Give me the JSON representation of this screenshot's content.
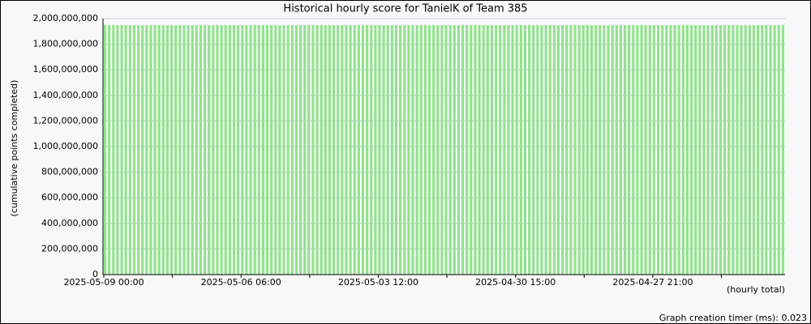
{
  "chart_data": {
    "type": "bar",
    "title": "Historical hourly score for TanielK of Team 385",
    "y_label": "(cumulative points completed)",
    "x_label": "(hourly total)",
    "footer": "Graph creation timer (ms): 0.023",
    "color": "#90e38c",
    "grid": true,
    "ylim": [
      0,
      2000000000
    ],
    "yticks": [
      0,
      {
        "value": 200000000,
        "label": "200,000,000"
      },
      {
        "value": 400000000,
        "label": "400,000,000"
      },
      {
        "value": 600000000,
        "label": "600,000,000"
      },
      {
        "value": 800000000,
        "label": "800,000,000"
      },
      {
        "value": 1000000000,
        "label": "1,000,000,000"
      },
      {
        "value": 1200000000,
        "label": "1,200,000,000"
      },
      {
        "value": 1400000000,
        "label": "1,400,000,000"
      },
      {
        "value": 1600000000,
        "label": "1,600,000,000"
      },
      {
        "value": 1800000000,
        "label": "1,800,000,000"
      },
      {
        "value": 2000000000,
        "label": "2,000,000,000"
      }
    ],
    "categories": [
      "2025-05-09 00:00",
      null,
      null,
      null,
      null,
      null,
      null,
      null,
      null,
      null,
      null,
      null,
      null,
      null,
      null,
      null,
      null,
      null,
      null,
      null,
      null,
      null,
      null,
      null,
      null,
      null,
      null,
      null,
      null,
      null,
      null,
      null,
      null,
      "2025-05-06 06:00",
      null,
      null,
      null,
      null,
      null,
      null,
      null,
      null,
      null,
      null,
      null,
      null,
      null,
      null,
      null,
      null,
      null,
      null,
      null,
      null,
      null,
      null,
      null,
      null,
      null,
      null,
      null,
      null,
      null,
      null,
      null,
      null,
      "2025-05-03 12:00",
      null,
      null,
      null,
      null,
      null,
      null,
      null,
      null,
      null,
      null,
      null,
      null,
      null,
      null,
      null,
      null,
      null,
      null,
      null,
      null,
      null,
      null,
      null,
      null,
      null,
      null,
      null,
      null,
      null,
      null,
      null,
      null,
      "2025-04-30 15:00",
      null,
      null,
      null,
      null,
      null,
      null,
      null,
      null,
      null,
      null,
      null,
      null,
      null,
      null,
      null,
      null,
      null,
      null,
      null,
      null,
      null,
      null,
      null,
      null,
      null,
      null,
      null,
      null,
      null,
      null,
      null,
      null,
      "2025-04-27 21:00",
      null,
      null,
      null,
      null,
      null,
      null,
      null,
      null,
      null,
      null,
      null,
      null,
      null,
      null,
      null,
      null,
      null,
      null,
      null,
      null,
      null,
      null,
      null,
      null,
      null,
      null,
      null,
      null,
      null,
      null,
      null
    ],
    "values": [
      1950000000,
      1950000000,
      1950000000,
      1950000000,
      1950000000,
      1950000000,
      1950000000,
      1950000000,
      1950000000,
      1950000000,
      1950000000,
      1950000000,
      1950000000,
      1950000000,
      1950000000,
      1950000000,
      1950000000,
      1950000000,
      1950000000,
      1950000000,
      1950000000,
      1950000000,
      1950000000,
      1950000000,
      1950000000,
      1950000000,
      1950000000,
      1950000000,
      1950000000,
      1950000000,
      1950000000,
      1950000000,
      1950000000,
      1950000000,
      1950000000,
      1950000000,
      1950000000,
      1950000000,
      1950000000,
      1950000000,
      1950000000,
      1950000000,
      1950000000,
      1950000000,
      1950000000,
      1950000000,
      1950000000,
      1950000000,
      1950000000,
      1950000000,
      1950000000,
      1950000000,
      1950000000,
      1950000000,
      1950000000,
      1950000000,
      1950000000,
      1950000000,
      1950000000,
      1950000000,
      1950000000,
      1950000000,
      1950000000,
      1950000000,
      1950000000,
      1950000000,
      1950000000,
      1950000000,
      1950000000,
      1950000000,
      1950000000,
      1950000000,
      1950000000,
      1950000000,
      1950000000,
      1950000000,
      1950000000,
      1950000000,
      1950000000,
      1950000000,
      1950000000,
      1950000000,
      1950000000,
      1950000000,
      1950000000,
      1950000000,
      1950000000,
      1950000000,
      1950000000,
      1950000000,
      1950000000,
      1950000000,
      1950000000,
      1950000000,
      1950000000,
      1950000000,
      1950000000,
      1950000000,
      1950000000,
      1950000000,
      1950000000,
      1950000000,
      1950000000,
      1950000000,
      1950000000,
      1950000000,
      1950000000,
      1950000000,
      1950000000,
      1950000000,
      1950000000,
      1950000000,
      1950000000,
      1950000000,
      1950000000,
      1950000000,
      1950000000,
      1950000000,
      1950000000,
      1950000000,
      1950000000,
      1950000000,
      1950000000,
      1950000000,
      1950000000,
      1950000000,
      1950000000,
      1950000000,
      1950000000,
      1950000000,
      1950000000,
      1950000000,
      1950000000,
      1950000000,
      1950000000,
      1950000000,
      1950000000,
      1950000000,
      1950000000,
      1950000000,
      1950000000,
      1950000000,
      1950000000,
      1950000000,
      1950000000,
      1950000000,
      1950000000,
      1950000000,
      1950000000,
      1950000000,
      1950000000,
      1950000000,
      1950000000,
      1950000000,
      1950000000,
      1950000000,
      1950000000,
      1950000000,
      1950000000,
      1950000000,
      1950000000,
      1950000000,
      1950000000,
      1950000000
    ]
  }
}
